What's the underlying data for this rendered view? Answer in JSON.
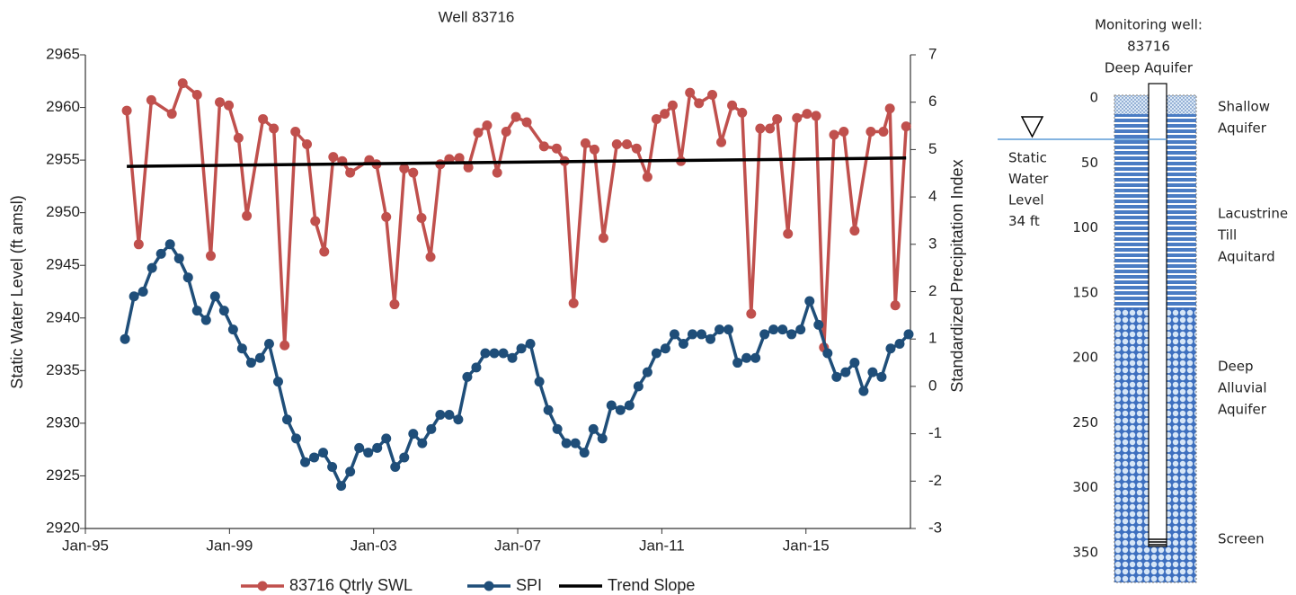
{
  "chart_data": {
    "type": "line",
    "title": "Well 83716",
    "y_label": "Static Water Level (ft amsl)",
    "y2_label": "Standardized Precipitation Index",
    "xlim": [
      1995,
      2017.9
    ],
    "xticks": [
      {
        "value": 1995,
        "label": "Jan-95"
      },
      {
        "value": 1999,
        "label": "Jan-99"
      },
      {
        "value": 2003,
        "label": "Jan-03"
      },
      {
        "value": 2007,
        "label": "Jan-07"
      },
      {
        "value": 2011,
        "label": "Jan-11"
      },
      {
        "value": 2015,
        "label": "Jan-15"
      }
    ],
    "ylim": [
      2920,
      2965
    ],
    "yticks": [
      2920,
      2925,
      2930,
      2935,
      2940,
      2945,
      2950,
      2955,
      2960,
      2965
    ],
    "y2lim": [
      -3,
      7
    ],
    "y2ticks": [
      -3,
      -2,
      -1,
      0,
      1,
      2,
      3,
      4,
      5,
      6,
      7
    ],
    "legend": "bottom",
    "series": [
      {
        "name": "83716 Qtrly SWL",
        "color": "#c0504d",
        "marker": "circle",
        "x": [
          1996.15,
          1996.48,
          1996.83,
          1997.4,
          1997.7,
          1998.1,
          1998.48,
          1998.73,
          1998.98,
          1999.25,
          1999.48,
          1999.93,
          2000.23,
          2000.53,
          2000.83,
          2001.15,
          2001.38,
          2001.63,
          2001.88,
          2002.13,
          2002.35,
          2002.88,
          2003.08,
          2003.35,
          2003.58,
          2003.85,
          2004.1,
          2004.33,
          2004.58,
          2004.85,
          2005.1,
          2005.38,
          2005.63,
          2005.9,
          2006.15,
          2006.43,
          2006.68,
          2006.95,
          2007.25,
          2007.73,
          2008.08,
          2008.3,
          2008.55,
          2008.88,
          2009.13,
          2009.38,
          2009.75,
          2010.03,
          2010.3,
          2010.6,
          2010.85,
          2011.08,
          2011.3,
          2011.53,
          2011.78,
          2012.03,
          2012.4,
          2012.65,
          2012.95,
          2013.23,
          2013.48,
          2013.73,
          2014.0,
          2014.2,
          2014.5,
          2014.75,
          2015.03,
          2015.28,
          2015.5,
          2015.78,
          2016.05,
          2016.35,
          2016.8,
          2017.15,
          2017.33,
          2017.48,
          2017.78
        ],
        "values": [
          2959.7,
          2947.0,
          2960.7,
          2959.4,
          2962.3,
          2961.2,
          2945.9,
          2960.5,
          2960.2,
          2957.1,
          2949.7,
          2958.9,
          2958.0,
          2937.4,
          2957.7,
          2956.5,
          2949.2,
          2946.3,
          2955.3,
          2954.9,
          2953.8,
          2955.0,
          2954.6,
          2949.6,
          2941.3,
          2954.2,
          2953.8,
          2949.5,
          2945.8,
          2954.6,
          2955.1,
          2955.2,
          2954.3,
          2957.6,
          2958.3,
          2953.8,
          2957.7,
          2959.1,
          2958.6,
          2956.3,
          2956.1,
          2954.9,
          2941.4,
          2956.6,
          2956.0,
          2947.6,
          2956.5,
          2956.5,
          2956.1,
          2953.4,
          2958.9,
          2959.4,
          2960.2,
          2954.9,
          2961.4,
          2960.4,
          2961.2,
          2956.7,
          2960.2,
          2959.5,
          2940.4,
          2958.0,
          2958.0,
          2958.9,
          2948.0,
          2959.0,
          2959.4,
          2959.2,
          2937.2,
          2957.4,
          2957.7,
          2948.3,
          2957.7,
          2957.7,
          2959.9,
          2941.2,
          2958.2
        ]
      },
      {
        "name": "SPI",
        "color": "#1f4e79",
        "marker": "circle",
        "axis": "y2",
        "x": [
          1996.1,
          1996.35,
          1996.6,
          1996.85,
          1997.1,
          1997.35,
          1997.6,
          1997.85,
          1998.1,
          1998.35,
          1998.6,
          1998.85,
          1999.1,
          1999.35,
          1999.6,
          1999.85,
          2000.1,
          2000.35,
          2000.6,
          2000.85,
          2001.1,
          2001.35,
          2001.6,
          2001.85,
          2002.1,
          2002.35,
          2002.6,
          2002.85,
          2003.1,
          2003.35,
          2003.6,
          2003.85,
          2004.1,
          2004.35,
          2004.6,
          2004.85,
          2005.1,
          2005.35,
          2005.6,
          2005.85,
          2006.1,
          2006.35,
          2006.6,
          2006.85,
          2007.1,
          2007.35,
          2007.6,
          2007.85,
          2008.1,
          2008.35,
          2008.6,
          2008.85,
          2009.1,
          2009.35,
          2009.6,
          2009.85,
          2010.1,
          2010.35,
          2010.6,
          2010.85,
          2011.1,
          2011.35,
          2011.6,
          2011.85,
          2012.1,
          2012.35,
          2012.6,
          2012.85,
          2013.1,
          2013.35,
          2013.6,
          2013.85,
          2014.1,
          2014.35,
          2014.6,
          2014.85,
          2015.1,
          2015.35,
          2015.6,
          2015.85,
          2016.1,
          2016.35,
          2016.6,
          2016.85,
          2017.1,
          2017.35,
          2017.6,
          2017.85
        ],
        "values": [
          1.0,
          1.9,
          2.0,
          2.5,
          2.8,
          3.0,
          2.7,
          2.3,
          1.6,
          1.4,
          1.9,
          1.6,
          1.2,
          0.8,
          0.5,
          0.6,
          0.9,
          0.1,
          -0.7,
          -1.1,
          -1.6,
          -1.5,
          -1.4,
          -1.7,
          -2.1,
          -1.8,
          -1.3,
          -1.4,
          -1.3,
          -1.1,
          -1.7,
          -1.5,
          -1.0,
          -1.2,
          -0.9,
          -0.6,
          -0.6,
          -0.7,
          0.2,
          0.4,
          0.7,
          0.7,
          0.7,
          0.6,
          0.8,
          0.9,
          0.1,
          -0.5,
          -0.9,
          -1.2,
          -1.2,
          -1.4,
          -0.9,
          -1.1,
          -0.4,
          -0.5,
          -0.4,
          0.0,
          0.3,
          0.7,
          0.8,
          1.1,
          0.9,
          1.1,
          1.1,
          1.0,
          1.2,
          1.2,
          0.5,
          0.6,
          0.6,
          1.1,
          1.2,
          1.2,
          1.1,
          1.2,
          1.8,
          1.3,
          0.7,
          0.2,
          0.3,
          0.5,
          -0.1,
          0.3,
          0.2,
          0.8,
          0.9,
          1.1
        ]
      },
      {
        "name": "Trend Slope",
        "color": "#000000",
        "x": [
          1996.15,
          2017.78
        ],
        "values": [
          2954.4,
          2955.2
        ]
      }
    ]
  },
  "diagram": {
    "title_lines": [
      "Monitoring well:",
      "83716",
      "Deep Aquifer"
    ],
    "depth_ticks": [
      0,
      50,
      100,
      150,
      200,
      250,
      300,
      350
    ],
    "water_level_lines": [
      "Static",
      "Water",
      "Level",
      "34 ft"
    ],
    "layers": [
      {
        "label_lines": [
          "Shallow",
          "Aquifer"
        ]
      },
      {
        "label_lines": [
          "Lacustrine",
          "Till",
          "Aquitard"
        ]
      },
      {
        "label_lines": [
          "Deep",
          "Alluvial",
          "Aquifer"
        ]
      }
    ],
    "screen_label": "Screen"
  }
}
